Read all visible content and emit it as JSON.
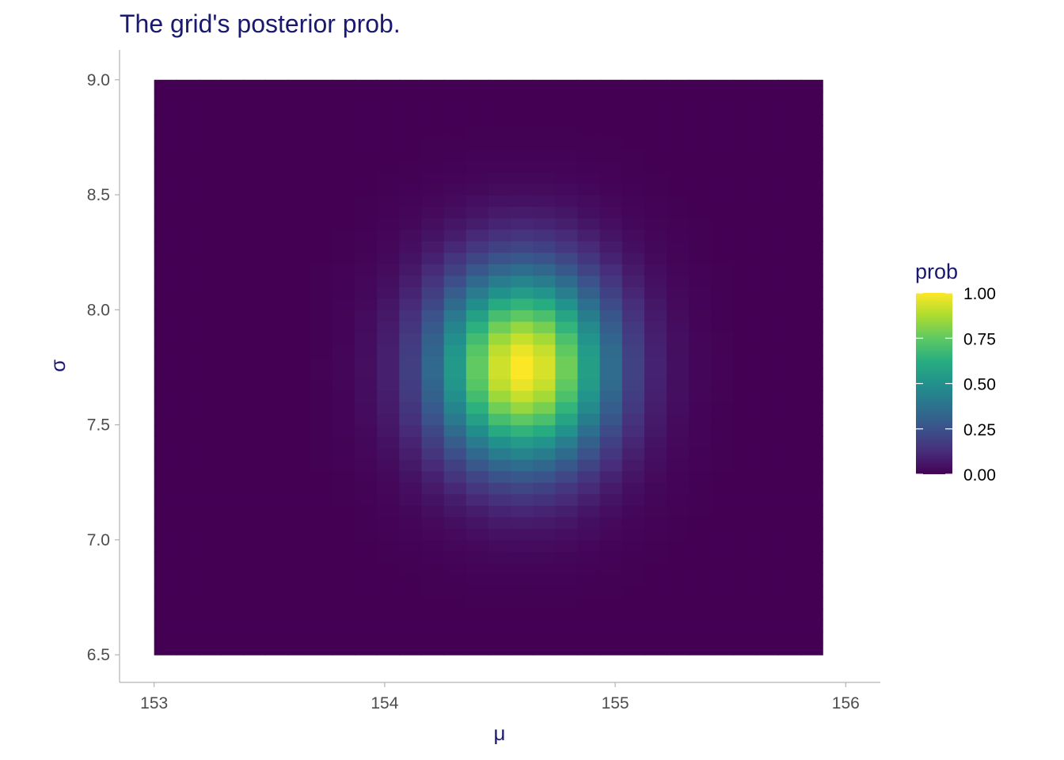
{
  "chart_data": {
    "type": "heatmap",
    "title": "The grid's posterior prob.",
    "xlabel": "μ",
    "ylabel": "σ",
    "x_ticks": [
      "153",
      "154",
      "155",
      "156"
    ],
    "y_ticks": [
      "6.5",
      "7.0",
      "7.5",
      "8.0",
      "8.5",
      "9.0"
    ],
    "x_range": [
      153.0,
      155.9
    ],
    "y_range": [
      6.5,
      9.0
    ],
    "xlim": [
      152.85,
      156.15
    ],
    "ylim": [
      6.38,
      9.13
    ],
    "grid": false,
    "peak": {
      "mu": 154.6,
      "sigma": 7.75
    },
    "spread": {
      "mu": 0.265,
      "sigma": 0.295
    },
    "grid_cols": 30,
    "grid_rows": 50,
    "legend": {
      "title": "prob",
      "position": "right",
      "labels": [
        "0.00",
        "0.25",
        "0.50",
        "0.75",
        "1.00"
      ],
      "values": [
        0,
        0.25,
        0.5,
        0.75,
        1.0
      ]
    },
    "palette": [
      "#440154",
      "#3b528b",
      "#21918c",
      "#5ec962",
      "#fde725"
    ]
  }
}
